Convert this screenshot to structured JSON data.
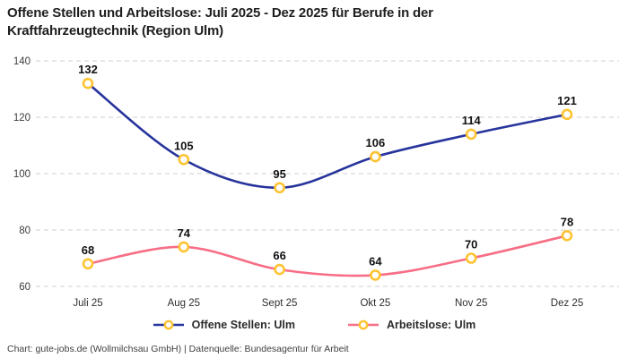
{
  "title": "Offene Stellen und Arbeitslose: Juli 2025 - Dez 2025 für Berufe in der Kraftfahrzeugtechnik (Region Ulm)",
  "footer": "Chart: gute-jobs.de (Wollmilchsau GmbH) | Datenquelle: Bundesagentur für Arbeit",
  "colors": {
    "series_open_positions": "#27349c",
    "series_unemployed": "#f76e85",
    "marker_ring": "#fdc331",
    "marker_fill": "#ffffff",
    "gridline": "#cfcfcf",
    "tick_text": "#3d3d3d",
    "value_label_text": "#111111"
  },
  "chart_data": {
    "type": "line",
    "categories": [
      "Juli 25",
      "Aug 25",
      "Sept 25",
      "Okt 25",
      "Nov 25",
      "Dez 25"
    ],
    "series": [
      {
        "name": "Offene Stellen: Ulm",
        "values": [
          132,
          105,
          95,
          106,
          114,
          121
        ],
        "color": "#27349c"
      },
      {
        "name": "Arbeitslose: Ulm",
        "values": [
          68,
          74,
          66,
          64,
          70,
          78
        ],
        "color": "#f76e85"
      }
    ],
    "y_ticks": [
      60,
      80,
      100,
      120,
      140
    ],
    "ylim": [
      60,
      140
    ],
    "grid": "dashed-horizontal",
    "legend_position": "bottom",
    "marker": "circle-ring-yellow",
    "data_labels": "above-points"
  }
}
